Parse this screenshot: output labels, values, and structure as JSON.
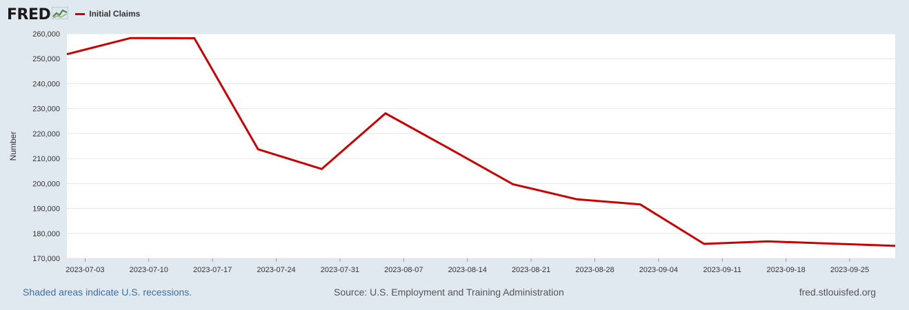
{
  "brand": {
    "name": "FRED",
    "icon": "chart-line-icon"
  },
  "colors": {
    "series": "#cc0000",
    "background": "#e1e9f0",
    "plot": "#ffffff",
    "grid": "#e6e6e6"
  },
  "legend": {
    "label": "Initial Claims"
  },
  "footer": {
    "recession_note": "Shaded areas indicate U.S. recessions.",
    "source": "Source: U.S. Employment and Training Administration",
    "site": "fred.stlouisfed.org"
  },
  "chart_data": {
    "type": "line",
    "title": "",
    "xlabel": "",
    "ylabel": "Number",
    "ylim": [
      170000,
      260000
    ],
    "yticks": [
      170000,
      180000,
      190000,
      200000,
      210000,
      220000,
      230000,
      240000,
      250000,
      260000
    ],
    "ytick_labels": [
      "170,000",
      "180,000",
      "190,000",
      "200,000",
      "210,000",
      "220,000",
      "230,000",
      "240,000",
      "250,000",
      "260,000"
    ],
    "xlim": [
      "2023-07-01",
      "2023-09-30"
    ],
    "xticks": [
      "2023-07-03",
      "2023-07-10",
      "2023-07-17",
      "2023-07-24",
      "2023-07-31",
      "2023-08-07",
      "2023-08-14",
      "2023-08-21",
      "2023-08-28",
      "2023-09-04",
      "2023-09-11",
      "2023-09-18",
      "2023-09-25"
    ],
    "grid": true,
    "series": [
      {
        "name": "Initial Claims",
        "x": [
          "2023-07-01",
          "2023-07-08",
          "2023-07-15",
          "2023-07-22",
          "2023-07-29",
          "2023-08-05",
          "2023-08-12",
          "2023-08-19",
          "2023-08-26",
          "2023-09-02",
          "2023-09-09",
          "2023-09-16",
          "2023-09-23",
          "2023-09-30"
        ],
        "values": [
          251800,
          258300,
          258200,
          213700,
          205800,
          228100,
          214000,
          199700,
          193700,
          191600,
          175800,
          176800,
          175900,
          175000
        ]
      }
    ]
  }
}
